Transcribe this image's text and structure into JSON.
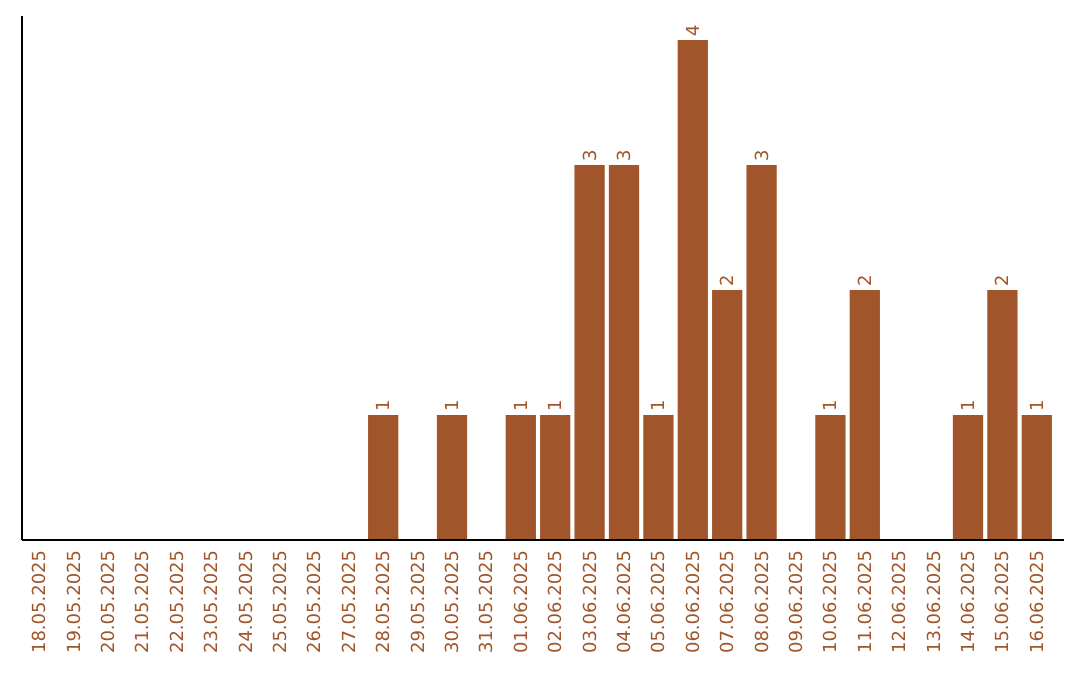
{
  "chart_data": {
    "type": "bar",
    "categories": [
      "18.05.2025",
      "19.05.2025",
      "20.05.2025",
      "21.05.2025",
      "22.05.2025",
      "23.05.2025",
      "24.05.2025",
      "25.05.2025",
      "26.05.2025",
      "27.05.2025",
      "28.05.2025",
      "29.05.2025",
      "30.05.2025",
      "31.05.2025",
      "01.06.2025",
      "02.06.2025",
      "03.06.2025",
      "04.06.2025",
      "05.06.2025",
      "06.06.2025",
      "07.06.2025",
      "08.06.2025",
      "09.06.2025",
      "10.06.2025",
      "11.06.2025",
      "12.06.2025",
      "13.06.2025",
      "14.06.2025",
      "15.06.2025",
      "16.06.2025"
    ],
    "values": [
      0,
      0,
      0,
      0,
      0,
      0,
      0,
      0,
      0,
      0,
      1,
      0,
      1,
      0,
      1,
      1,
      3,
      3,
      1,
      4,
      2,
      3,
      0,
      1,
      2,
      0,
      0,
      1,
      2,
      1
    ],
    "value_labels": [
      null,
      null,
      null,
      null,
      null,
      null,
      null,
      null,
      null,
      null,
      "1",
      null,
      "1",
      null,
      "1",
      "1",
      "3",
      "3",
      "1",
      "4",
      "2",
      "3",
      null,
      "1",
      "2",
      null,
      null,
      "1",
      "2",
      "1"
    ],
    "color": "#a0562a"
  }
}
